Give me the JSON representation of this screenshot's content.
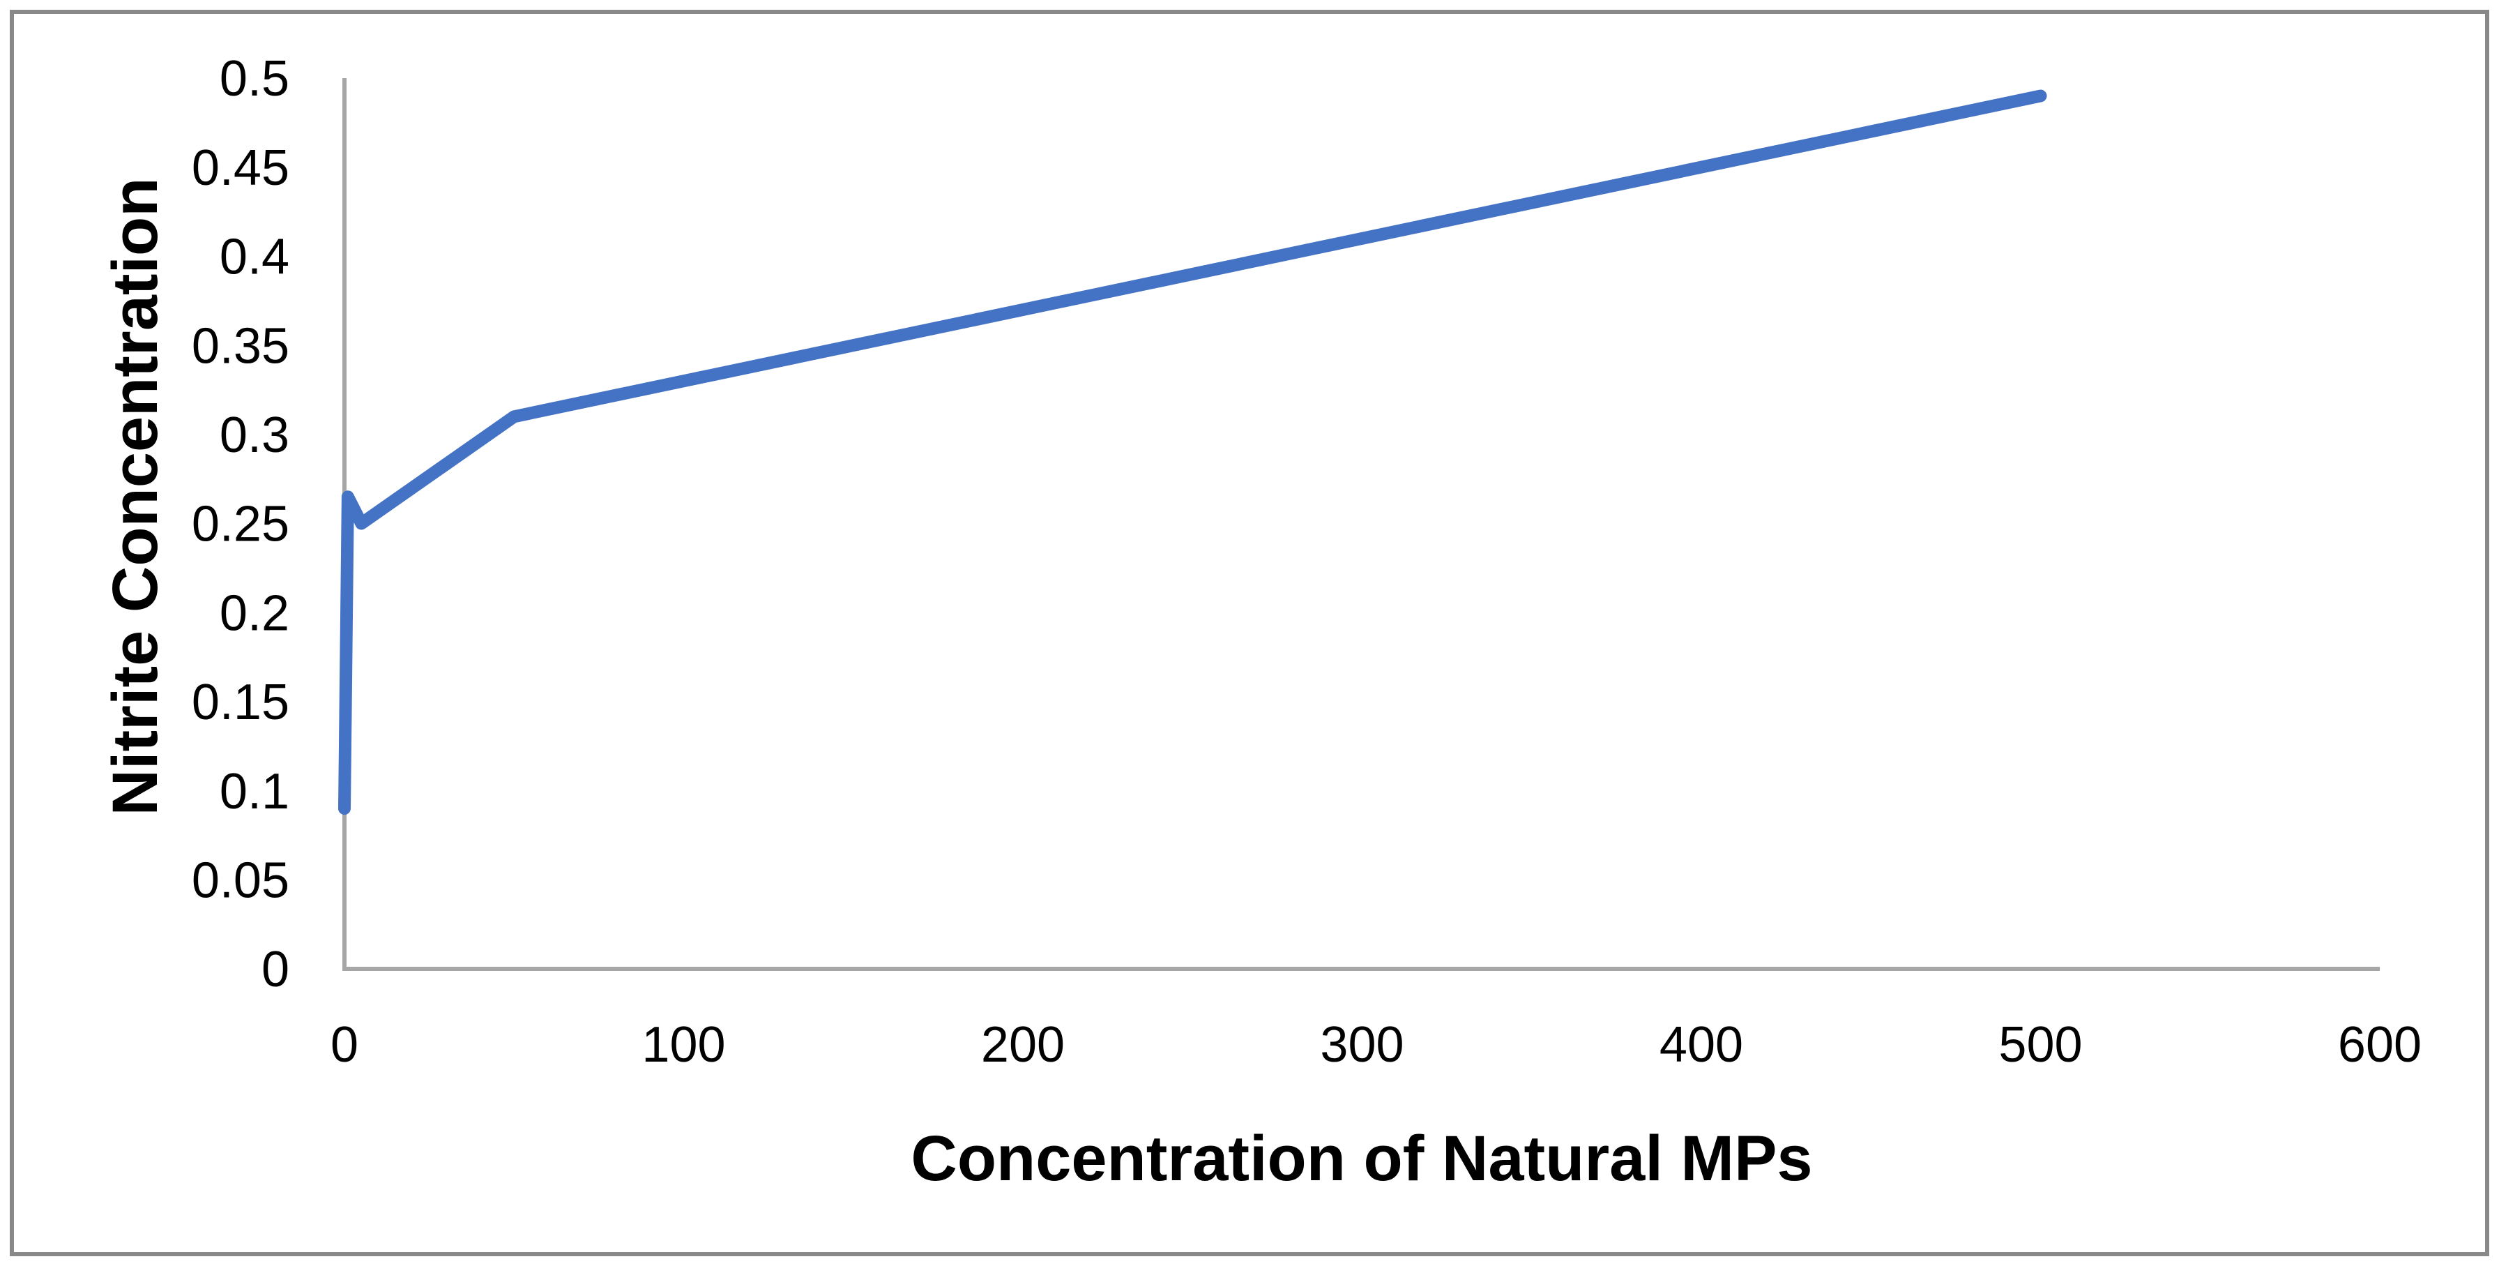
{
  "chart": {
    "x_axis_title": "Concentration of Natural MPs",
    "y_axis_title": "Nitrite Concentration"
  },
  "chart_data": {
    "type": "line",
    "title": "",
    "xlabel": "Concentration of Natural MPs",
    "ylabel": "Nitrite Concentration",
    "x": [
      0,
      1,
      5,
      50,
      500
    ],
    "series": [
      {
        "name": "Nitrite Concentration",
        "values": [
          0.09,
          0.265,
          0.25,
          0.31,
          0.49
        ]
      }
    ],
    "xlim": [
      0,
      600
    ],
    "ylim": [
      0,
      0.5
    ],
    "x_ticks": [
      0,
      100,
      200,
      300,
      400,
      500,
      600
    ],
    "x_tick_labels": [
      "0",
      "100",
      "200",
      "300",
      "400",
      "500",
      "600"
    ],
    "y_ticks": [
      0,
      0.05,
      0.1,
      0.15,
      0.2,
      0.25,
      0.3,
      0.35,
      0.4,
      0.45,
      0.5
    ],
    "y_tick_labels": [
      "0",
      "0.05",
      "0.1",
      "0.15",
      "0.2",
      "0.25",
      "0.3",
      "0.35",
      "0.4",
      "0.45",
      "0.5"
    ],
    "grid": false,
    "legend": "none",
    "line_color": "#4472C4",
    "axis_color": "#A6A6A6",
    "border_color": "#898989",
    "text_color": "#000000",
    "background_color": "#FFFFFF"
  }
}
